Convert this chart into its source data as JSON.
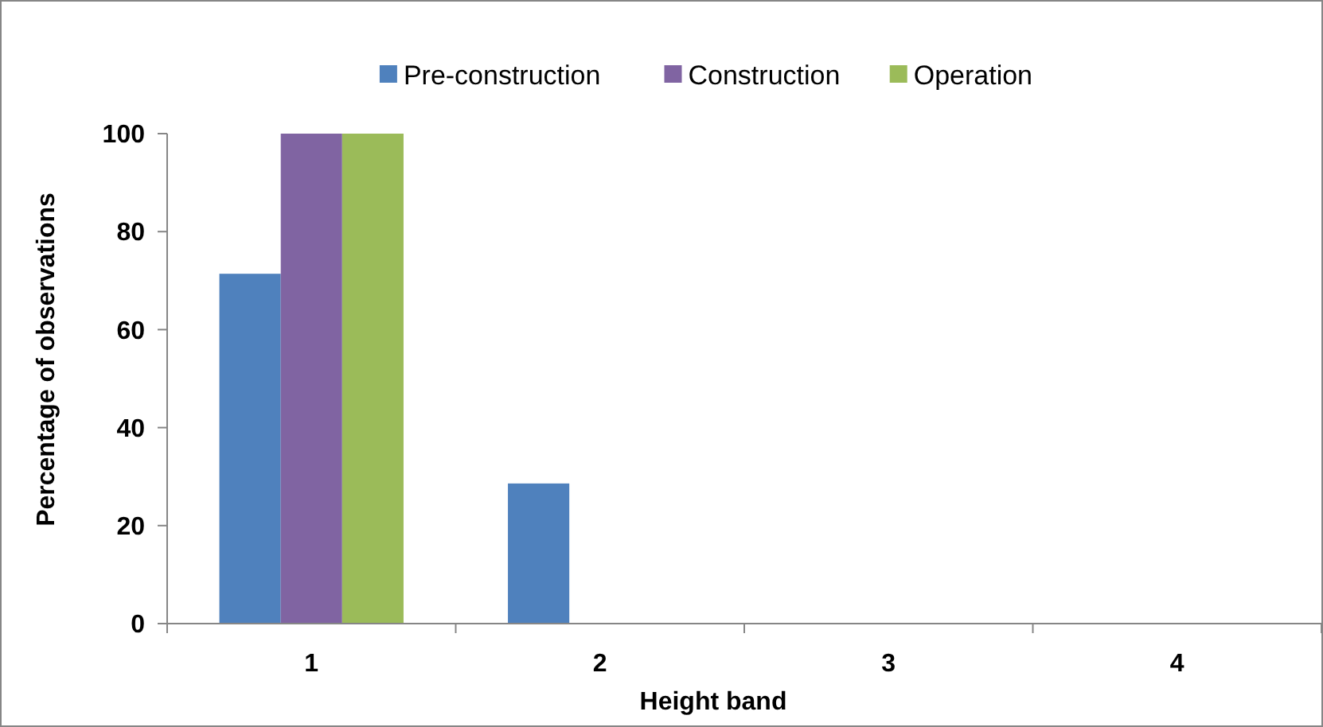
{
  "chart_data": {
    "type": "bar",
    "xlabel": "Height band",
    "ylabel": "Percentage of observations",
    "categories": [
      "1",
      "2",
      "3",
      "4"
    ],
    "series": [
      {
        "name": "Pre-construction",
        "color": "#4f81bd",
        "values": [
          71.4,
          28.6,
          0,
          0
        ]
      },
      {
        "name": "Construction",
        "color": "#8064a2",
        "values": [
          100,
          0,
          0,
          0
        ]
      },
      {
        "name": "Operation",
        "color": "#9bbb59",
        "values": [
          100,
          0,
          0,
          0
        ]
      }
    ],
    "ylim": [
      0,
      100
    ],
    "yticks": [
      0,
      20,
      40,
      60,
      80,
      100
    ],
    "grid": false,
    "legend": "top"
  }
}
